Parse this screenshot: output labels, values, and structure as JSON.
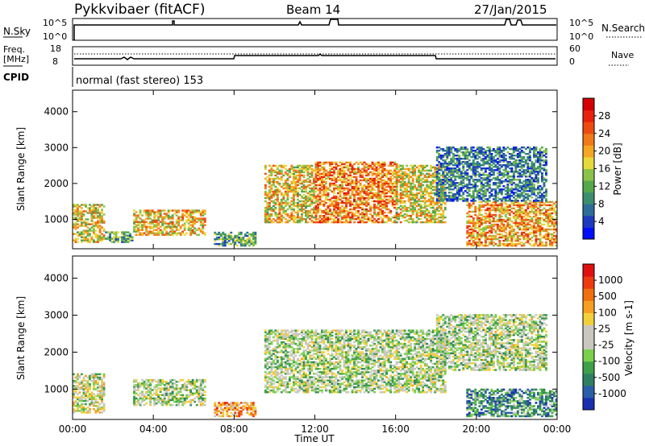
{
  "header": {
    "station": "Pykkvibaer (fitACF)",
    "beam": "Beam 14",
    "date": "27/Jan/2015"
  },
  "noise_panel": {
    "left_label": "N.Sky",
    "right_label": "N.Search",
    "left_ticks": [
      "10^5",
      "10^0"
    ],
    "right_ticks": [
      "10^5",
      "10^0"
    ]
  },
  "freq_panel": {
    "left_label_1": "Freq.",
    "left_label_2": "[MHz]",
    "right_label": "Nave",
    "left_ticks": [
      "18",
      "8"
    ],
    "right_ticks": [
      "60",
      "0"
    ]
  },
  "cpid": {
    "label": "CPID",
    "text": "normal (fast stereo) 153"
  },
  "x_axis": {
    "label": "Time UT",
    "ticks": [
      "00:00",
      "04:00",
      "08:00",
      "12:00",
      "16:00",
      "20:00",
      "00:00"
    ]
  },
  "chart_data": [
    {
      "type": "heatmap",
      "name": "power",
      "ylabel": "Slant Range [km]",
      "yticks": [
        1000,
        2000,
        3000,
        4000
      ],
      "ylim": [
        180,
        4600
      ],
      "xlim_hours": [
        0,
        24
      ],
      "colorbar": {
        "label": "Power [dB]",
        "ticks": [
          "28",
          "24",
          "20",
          "16",
          "12",
          "8",
          "4"
        ],
        "colors": [
          "#0010ff",
          "#1d3bbf",
          "#2d6e99",
          "#3b8f6e",
          "#55a84c",
          "#8bc34a",
          "#e8d93a",
          "#f5a623",
          "#f07a1a",
          "#ee4b12",
          "#e8220d",
          "#d40000"
        ]
      },
      "regions": [
        {
          "t0": 0.0,
          "t1": 1.6,
          "r0": 350,
          "r1": 1400,
          "level": 0.55
        },
        {
          "t0": 1.6,
          "t1": 3.0,
          "r0": 350,
          "r1": 650,
          "level": 0.35
        },
        {
          "t0": 3.0,
          "t1": 6.5,
          "r0": 550,
          "r1": 1250,
          "level": 0.6
        },
        {
          "t0": 7.0,
          "t1": 9.0,
          "r0": 250,
          "r1": 650,
          "level": 0.35
        },
        {
          "t0": 9.5,
          "t1": 12.0,
          "r0": 900,
          "r1": 2500,
          "level": 0.55
        },
        {
          "t0": 12.0,
          "t1": 16.0,
          "r0": 900,
          "r1": 2600,
          "level": 0.7
        },
        {
          "t0": 16.0,
          "t1": 18.5,
          "r0": 900,
          "r1": 2500,
          "level": 0.55
        },
        {
          "t0": 19.5,
          "t1": 24.0,
          "r0": 250,
          "r1": 1500,
          "level": 0.65
        },
        {
          "t0": 18.0,
          "t1": 23.5,
          "r0": 1500,
          "r1": 3000,
          "level": 0.25
        }
      ]
    },
    {
      "type": "heatmap",
      "name": "velocity",
      "ylabel": "Slant Range [km]",
      "yticks": [
        1000,
        2000,
        3000,
        4000
      ],
      "ylim": [
        180,
        4600
      ],
      "xlim_hours": [
        0,
        24
      ],
      "colorbar": {
        "label": "Velocity [m s-1]",
        "ticks": [
          "1000",
          "500",
          "100",
          "25",
          "-25",
          "-100",
          "-500",
          "-1000"
        ],
        "colors": [
          "#1a2fb0",
          "#2a5fa8",
          "#2f8060",
          "#3fa04a",
          "#7ad04a",
          "#c8c8c0",
          "#c8c8c0",
          "#f2d03a",
          "#f5a020",
          "#f07010",
          "#ee3a10",
          "#e01010"
        ]
      },
      "regions": [
        {
          "t0": 0.0,
          "t1": 1.6,
          "r0": 350,
          "r1": 1400,
          "level": 0.5
        },
        {
          "t0": 3.0,
          "t1": 6.5,
          "r0": 550,
          "r1": 1250,
          "level": 0.45
        },
        {
          "t0": 7.0,
          "t1": 9.0,
          "r0": 250,
          "r1": 650,
          "level": 0.7
        },
        {
          "t0": 9.5,
          "t1": 18.5,
          "r0": 900,
          "r1": 2600,
          "level": 0.45
        },
        {
          "t0": 19.5,
          "t1": 24.0,
          "r0": 250,
          "r1": 1000,
          "level": 0.25
        },
        {
          "t0": 18.0,
          "t1": 23.5,
          "r0": 1500,
          "r1": 3000,
          "level": 0.45
        }
      ]
    }
  ]
}
